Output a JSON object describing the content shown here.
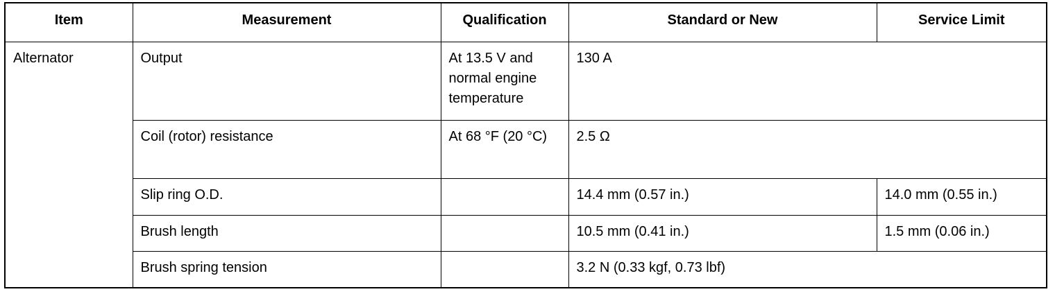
{
  "table": {
    "header": [
      "Item",
      "Measurement",
      "Qualification",
      "Standard or New",
      "Service Limit"
    ],
    "rows": [
      [
        "Alternator",
        "Output",
        "At 13.5 V and normal engine temperature",
        "130 A"
      ],
      [
        "Coil (rotor) resistance",
        "At 68 °F (20 °C)",
        "2.5 Ω"
      ],
      [
        "Slip ring O.D.",
        "14.4 mm (0.57 in.)",
        "14.0 mm (0.55 in.)"
      ],
      [
        "Brush length",
        "10.5 mm (0.41 in.)",
        "1.5 mm (0.06 in.)"
      ],
      [
        "Brush spring tension",
        "3.2 N (0.33 kgf, 0.73 lbf)"
      ]
    ]
  }
}
